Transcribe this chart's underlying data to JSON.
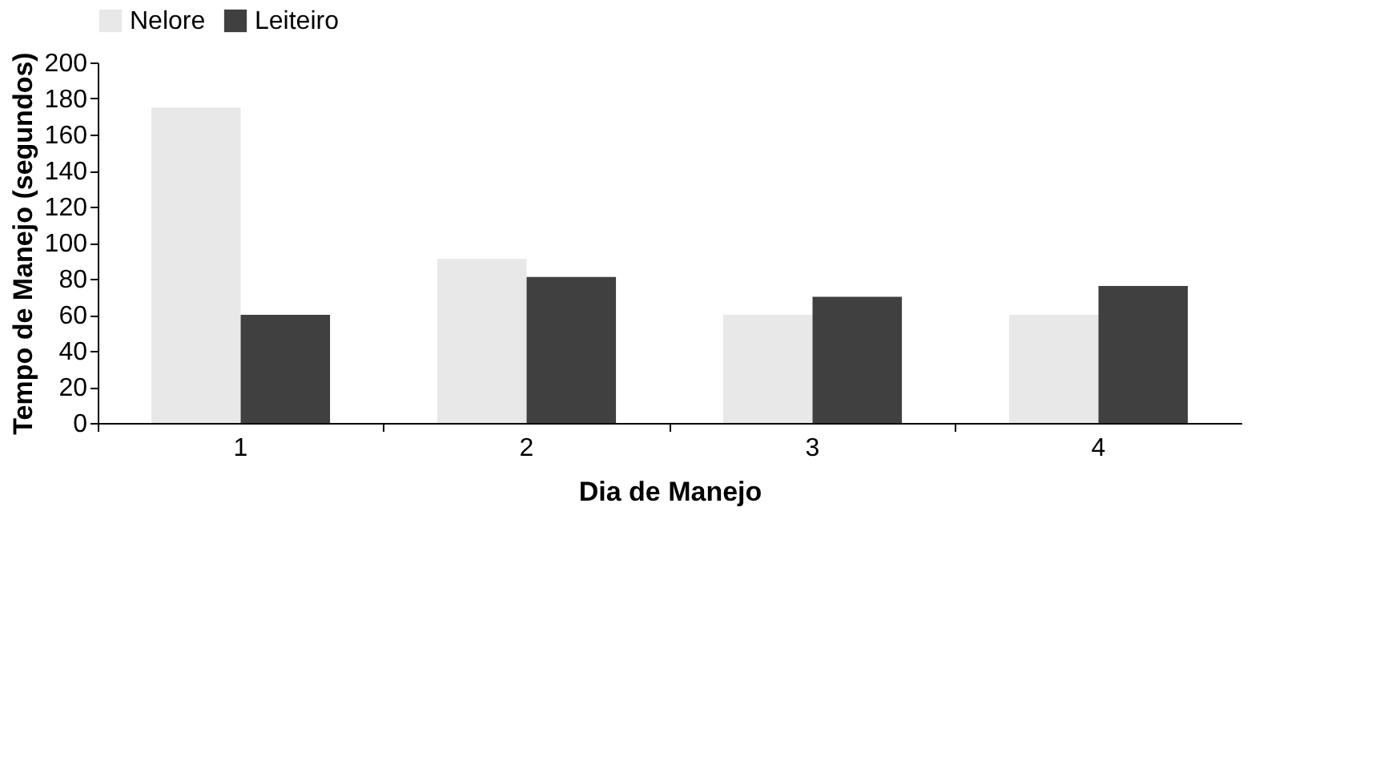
{
  "chart_data": {
    "type": "bar",
    "xlabel": "Dia de Manejo",
    "ylabel": "Tempo de Manejo (segundos)",
    "categories": [
      "1",
      "2",
      "3",
      "4"
    ],
    "series": [
      {
        "name": "Nelore",
        "color": "#e8e8e8",
        "values": [
          175,
          91,
          60,
          60
        ]
      },
      {
        "name": "Leiteiro",
        "color": "#404040",
        "values": [
          60,
          81,
          70,
          76
        ]
      }
    ],
    "ylim": [
      0,
      200
    ],
    "yticks": [
      0,
      20,
      40,
      60,
      80,
      100,
      120,
      140,
      160,
      180,
      200
    ],
    "grid": false,
    "legend": "top"
  }
}
